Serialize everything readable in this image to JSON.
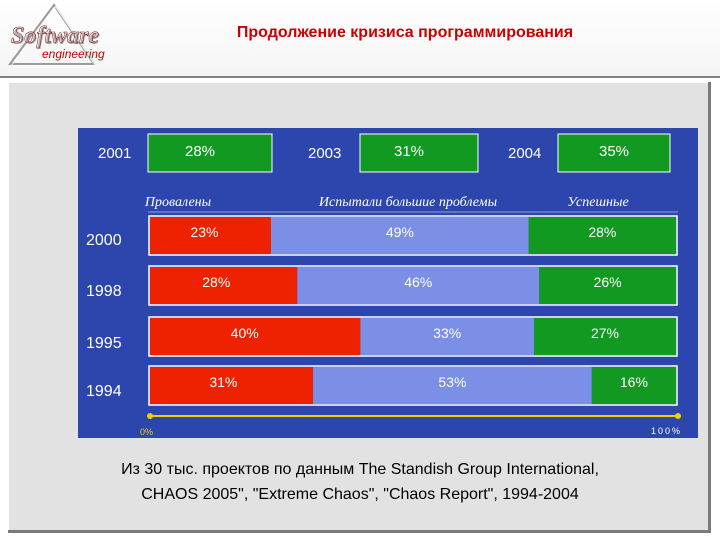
{
  "header": {
    "title": "Продолжение кризиса программирования",
    "logo_text_1": "Software",
    "logo_text_2": "engineering"
  },
  "chart_data": {
    "type": "bar",
    "stacked": true,
    "orientation": "horizontal",
    "title": "",
    "categories": [
      "2000",
      "1998",
      "1995",
      "1994"
    ],
    "series": [
      {
        "name": "Провалены",
        "color": "#ee2200",
        "values": [
          23,
          28,
          40,
          31
        ]
      },
      {
        "name": "Испытали большие проблемы",
        "color": "#7b8fe6",
        "values": [
          49,
          46,
          33,
          53
        ]
      },
      {
        "name": "Успешные",
        "color": "#119922",
        "values": [
          28,
          26,
          27,
          16
        ]
      }
    ],
    "value_labels": [
      [
        "23%",
        "49%",
        "28%"
      ],
      [
        "28%",
        "46%",
        "26%"
      ],
      [
        "40%",
        "33%",
        "27%"
      ],
      [
        "31%",
        "53%",
        "16%"
      ]
    ],
    "extra_years": [
      {
        "year": "2001",
        "value": 28,
        "label": "28%"
      },
      {
        "year": "2003",
        "value": 31,
        "label": "31%"
      },
      {
        "year": "2004",
        "value": 35,
        "label": "35%"
      }
    ],
    "axis": {
      "min_label": "0%",
      "max_label": "100%",
      "xlim": [
        0,
        100
      ]
    },
    "colors": {
      "background": "#2c46ae",
      "axis": "#f0d000",
      "success_box": "#119922",
      "text": "#ffffff"
    }
  },
  "footnote": {
    "line1": "Из 30 тыс. проектов по данным The Standish Group International,",
    "line2": "CHAOS 2005\", \"Extreme Chaos\", \"Chaos Report\", 1994-2004"
  }
}
